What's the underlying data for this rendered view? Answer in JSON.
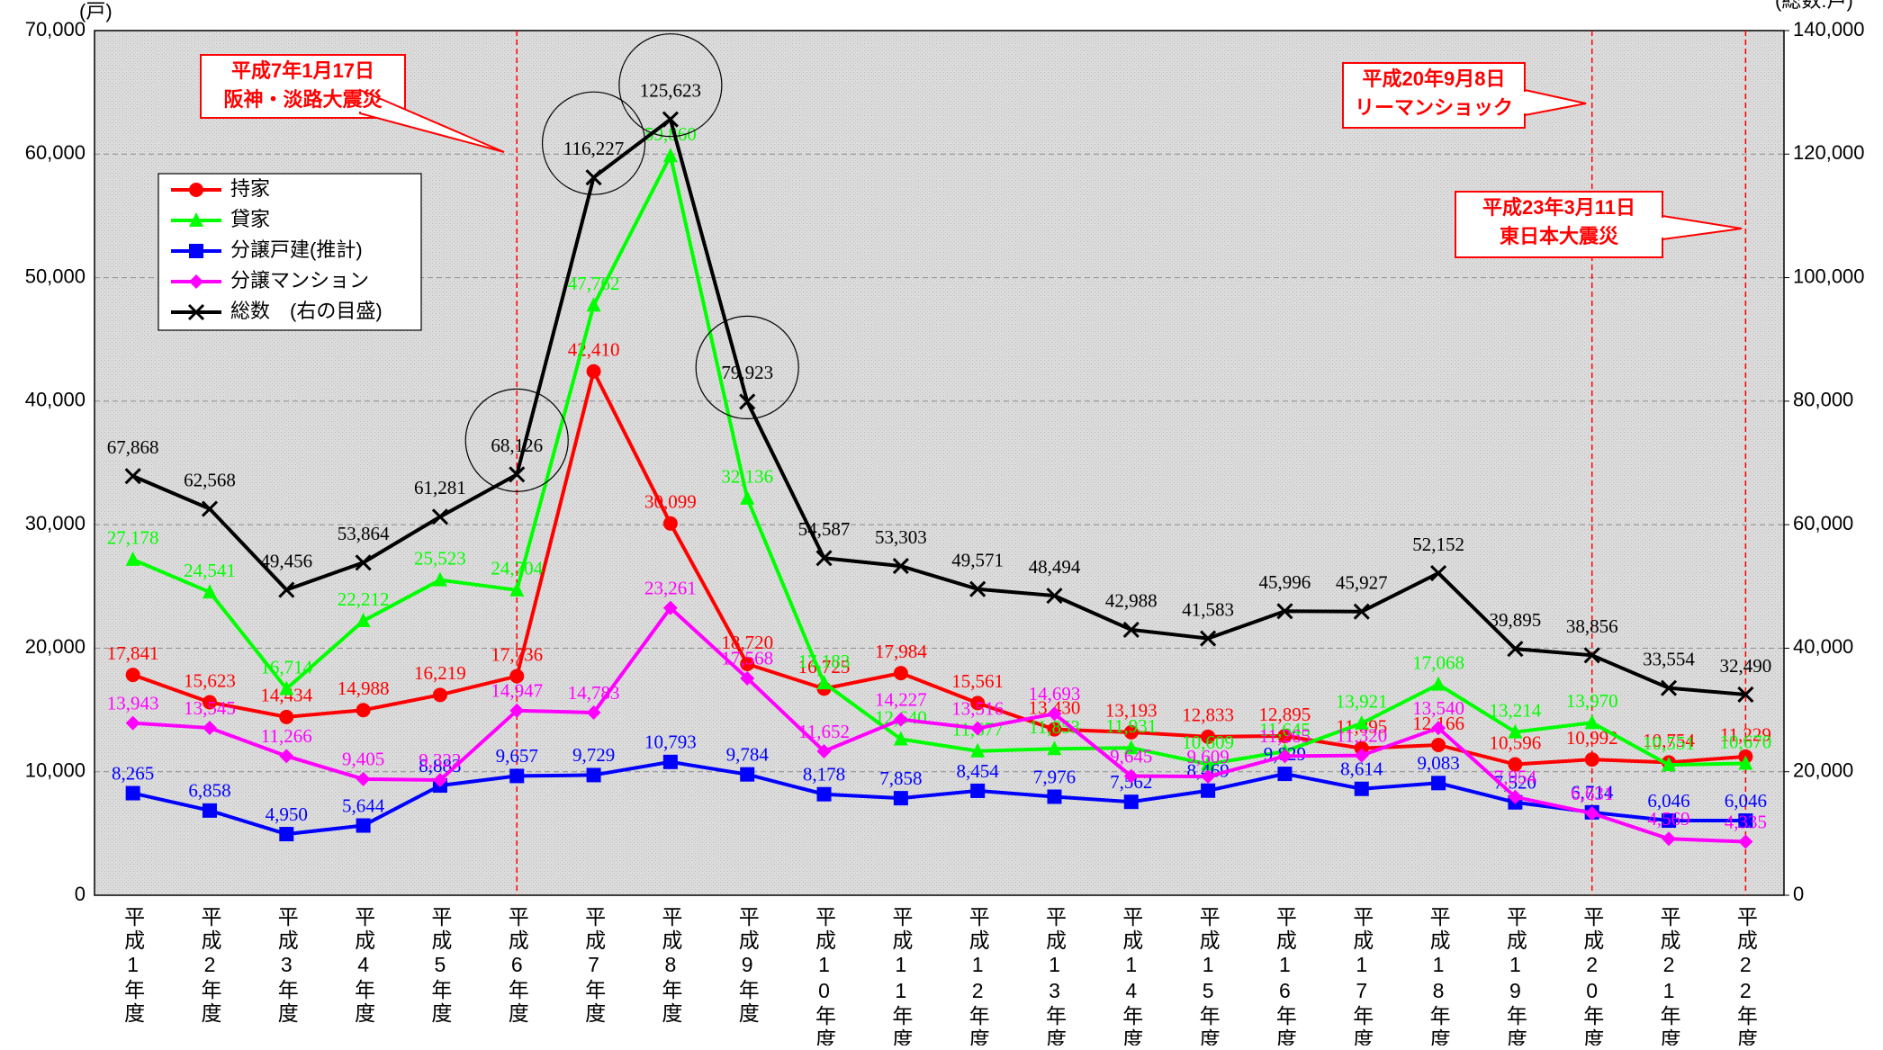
{
  "chart_data": {
    "type": "line",
    "y_unit_label": "(戸)",
    "y2_unit_label": "(総数:戸)",
    "categories": [
      "平成1年度",
      "平成2年度",
      "平成3年度",
      "平成4年度",
      "平成5年度",
      "平成6年度",
      "平成7年度",
      "平成8年度",
      "平成9年度",
      "平成10年度",
      "平成11年度",
      "平成12年度",
      "平成13年度",
      "平成14年度",
      "平成15年度",
      "平成16年度",
      "平成17年度",
      "平成18年度",
      "平成19年度",
      "平成20年度",
      "平成21年度",
      "平成22年度"
    ],
    "ylim": [
      0,
      70000
    ],
    "yticks": [
      0,
      {
        "value": 10000,
        "label": "10,000"
      },
      {
        "value": 20000,
        "label": "20,000"
      },
      {
        "value": 30000,
        "label": "30,000"
      },
      {
        "value": 40000,
        "label": "40,000"
      },
      {
        "value": 50000,
        "label": "50,000"
      },
      {
        "value": 60000,
        "label": "60,000"
      },
      {
        "value": 70000,
        "label": "70,000"
      }
    ],
    "y2lim": [
      0,
      140000
    ],
    "y2ticks": [
      0,
      {
        "value": 20000,
        "label": "20,000"
      },
      {
        "value": 40000,
        "label": "40,000"
      },
      {
        "value": 60000,
        "label": "60,000"
      },
      {
        "value": 80000,
        "label": "80,000"
      },
      {
        "value": 100000,
        "label": "100,000"
      },
      {
        "value": 120000,
        "label": "120,000"
      },
      {
        "value": 140000,
        "label": "140,000"
      }
    ],
    "grid": true,
    "series": [
      {
        "name": "持家",
        "color": "#ff0000",
        "marker": "circle",
        "values": [
          17841,
          15623,
          14434,
          14988,
          16219,
          17736,
          42410,
          30099,
          18720,
          16725,
          17984,
          15561,
          13430,
          13193,
          12833,
          12895,
          11895,
          12166,
          10596,
          10992,
          10754,
          11229
        ],
        "value_labels": [
          "17,841",
          "15,623",
          "14,434",
          "14,988",
          "16,219",
          "17,736",
          "42,410",
          "30,099",
          "18,720",
          "16,725",
          "17,984",
          "15,561",
          "13,430",
          "13,193",
          "12,833",
          "12,895",
          "11,895",
          "12,166",
          "10,596",
          "10,992",
          "10,754",
          "11,229"
        ]
      },
      {
        "name": "貸家",
        "color": "#00ff00",
        "marker": "triangle",
        "values": [
          27178,
          24541,
          16714,
          22212,
          25523,
          24704,
          47762,
          59860,
          32136,
          17183,
          12640,
          11677,
          11853,
          11931,
          10609,
          11645,
          13921,
          17068,
          13214,
          13970,
          10551,
          10670
        ],
        "value_labels": [
          "27,178",
          "24,541",
          "16,714",
          "22,212",
          "25,523",
          "24,704",
          "47,762",
          "59,860",
          "32,136",
          "17,183",
          "12,640",
          "11,677",
          "11,853",
          "11,931",
          "10,609",
          "11,645",
          "13,921",
          "17,068",
          "13,214",
          "13,970",
          "10,551",
          "10,670"
        ]
      },
      {
        "name": "分譲戸建(推計)",
        "color": "#0000ff",
        "marker": "square",
        "values": [
          8265,
          6858,
          4950,
          5644,
          8883,
          9657,
          9729,
          10793,
          9784,
          8178,
          7858,
          8454,
          7976,
          7562,
          8469,
          9829,
          8614,
          9083,
          7520,
          6714,
          6046,
          6046
        ],
        "value_labels": [
          "8,265",
          "6,858",
          "4,950",
          "5,644",
          "8,883",
          "9,657",
          "9,729",
          "10,793",
          "9,784",
          "8,178",
          "7,858",
          "8,454",
          "7,976",
          "7,562",
          "8,469",
          "9,829",
          "8,614",
          "9,083",
          "7,520",
          "6,714",
          "6,046",
          "6,046"
        ]
      },
      {
        "name": "分譲マンション",
        "color": "#ff00ff",
        "marker": "diamond",
        "values": [
          13943,
          13545,
          11266,
          9405,
          9322,
          14947,
          14783,
          23261,
          17568,
          11652,
          14227,
          13516,
          14693,
          9645,
          9609,
          11265,
          11320,
          13540,
          7954,
          6631,
          4569,
          4335
        ],
        "value_labels": [
          "13,943",
          "13,545",
          "11,266",
          "9,405",
          "9,322",
          "14,947",
          "14,783",
          "23,261",
          "17,568",
          "11,652",
          "14,227",
          "13,516",
          "14,693",
          "9,645",
          "9,609",
          "11,265",
          "11,320",
          "13,540",
          "7,954",
          "6,631",
          "4,569",
          "4,335"
        ]
      },
      {
        "name": "総数　(右の目盛)",
        "color": "#000000",
        "marker": "x",
        "axis": "y2",
        "values": [
          67868,
          62568,
          49456,
          53864,
          61281,
          68126,
          116227,
          125623,
          79923,
          54587,
          53303,
          49571,
          48494,
          42988,
          41583,
          45996,
          45927,
          52152,
          39895,
          38856,
          33554,
          32490
        ],
        "value_labels": [
          "67,868",
          "62,568",
          "49,456",
          "53,864",
          "61,281",
          "68,126",
          "116,227",
          "125,623",
          "79,923",
          "54,587",
          "53,303",
          "49,571",
          "48,494",
          "42,988",
          "41,583",
          "45,996",
          "45,927",
          "52,152",
          "39,895",
          "38,856",
          "33,554",
          "32,490"
        ]
      }
    ],
    "annotations": [
      [
        "平成7年1月17日",
        "阪神・淡路大震災"
      ],
      [
        "平成20年9月8日",
        "リーマンショック"
      ],
      [
        "平成23年3月11日",
        "東日本大震災"
      ]
    ]
  }
}
